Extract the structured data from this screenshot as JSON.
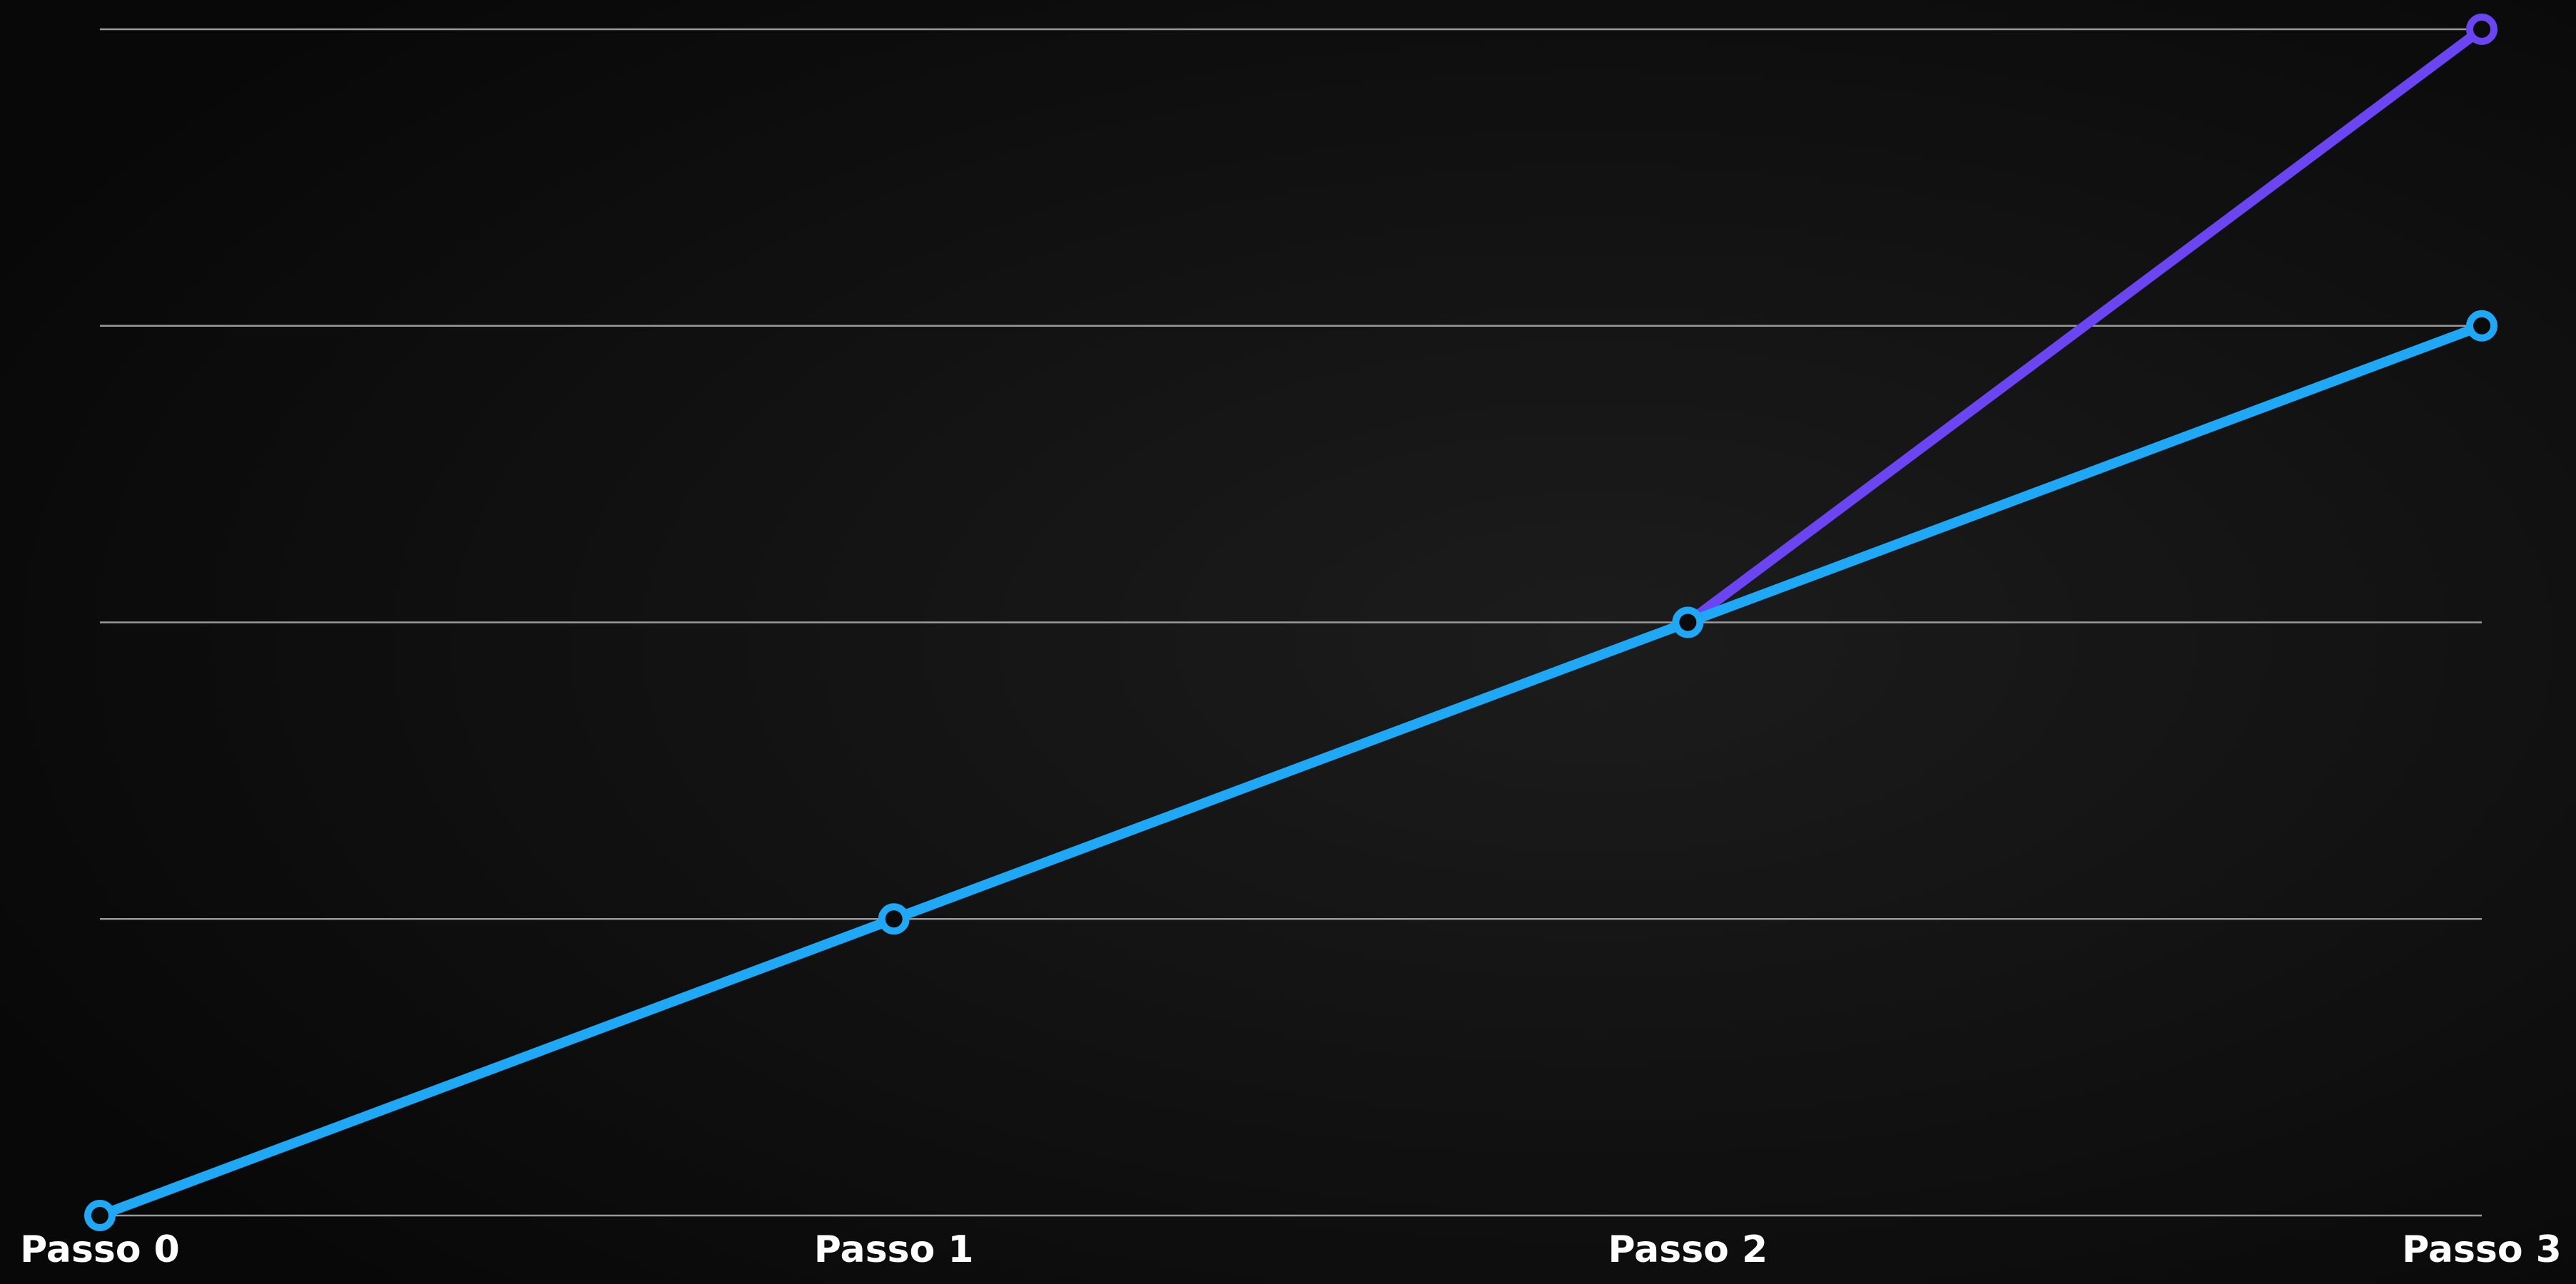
{
  "chart_data": {
    "type": "line",
    "categories": [
      "Passo 0",
      "Passo 1",
      "Passo 2",
      "Passo 3"
    ],
    "series": [
      {
        "color": "#6b45f2",
        "values": [
          null,
          null,
          2,
          4
        ]
      },
      {
        "color": "#1fa8f5",
        "values": [
          0,
          1,
          2,
          3
        ]
      }
    ],
    "ylim": [
      0,
      4
    ],
    "yticks": [
      0,
      1,
      2,
      3,
      4
    ],
    "grid": true
  }
}
